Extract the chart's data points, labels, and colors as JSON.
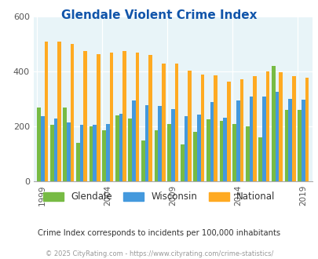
{
  "title": "Glendale Violent Crime Index",
  "years": [
    1999,
    2000,
    2001,
    2002,
    2003,
    2004,
    2005,
    2006,
    2007,
    2008,
    2009,
    2010,
    2011,
    2012,
    2013,
    2014,
    2015,
    2016,
    2017,
    2018,
    2019
  ],
  "glendale": [
    270,
    205,
    270,
    140,
    200,
    185,
    240,
    230,
    150,
    185,
    210,
    135,
    180,
    225,
    220,
    210,
    200,
    160,
    420,
    260,
    260
  ],
  "wisconsin": [
    238,
    230,
    215,
    205,
    205,
    210,
    245,
    295,
    278,
    275,
    262,
    238,
    242,
    288,
    232,
    295,
    310,
    308,
    325,
    300,
    298
  ],
  "national": [
    510,
    510,
    500,
    475,
    465,
    470,
    475,
    470,
    460,
    430,
    430,
    405,
    390,
    387,
    365,
    373,
    383,
    400,
    397,
    383,
    377
  ],
  "glendale_color": "#77bb44",
  "wisconsin_color": "#4499dd",
  "national_color": "#ffaa22",
  "bg_color": "#e8f4f8",
  "ylim": [
    0,
    600
  ],
  "yticks": [
    0,
    200,
    400,
    600
  ],
  "subtitle": "Crime Index corresponds to incidents per 100,000 inhabitants",
  "footer": "© 2025 CityRating.com - https://www.cityrating.com/crime-statistics/",
  "xtick_years": [
    1999,
    2004,
    2009,
    2014,
    2019
  ],
  "bar_width": 0.28,
  "title_color": "#1155aa",
  "tick_color": "#555555",
  "subtitle_color": "#333333",
  "footer_color": "#999999",
  "spine_color": "#aaaaaa"
}
